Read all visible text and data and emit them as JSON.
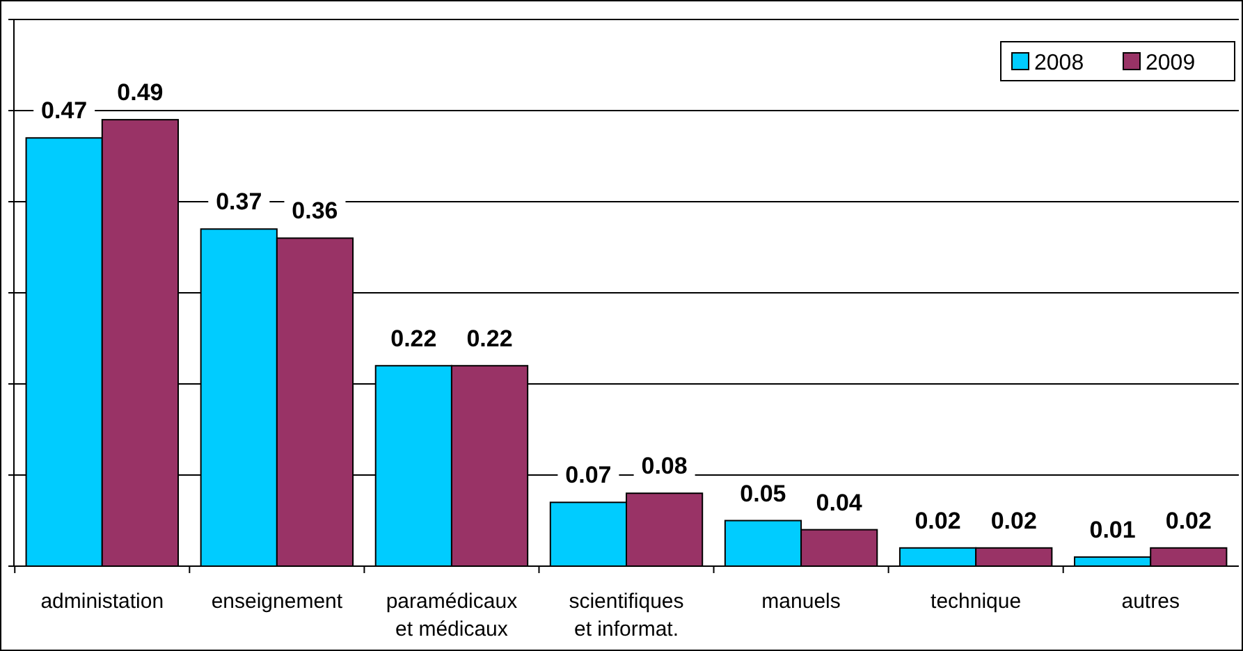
{
  "chart_data": {
    "type": "bar",
    "categories": [
      "administation",
      "enseignement",
      "paramédicaux et médicaux",
      "scientifiques et informat.",
      "manuels",
      "technique",
      "autres"
    ],
    "series": [
      {
        "name": "2008",
        "color": "#00ccff",
        "values": [
          0.47,
          0.37,
          0.22,
          0.07,
          0.05,
          0.02,
          0.01
        ]
      },
      {
        "name": "2009",
        "color": "#993366",
        "values": [
          0.49,
          0.36,
          0.22,
          0.08,
          0.04,
          0.02,
          0.02
        ]
      }
    ],
    "ylim": [
      0,
      0.6
    ],
    "yticks": [
      {
        "value": 0,
        "label": null
      },
      {
        "value": 0.1,
        "label": null
      },
      {
        "value": 0.2,
        "label": null
      },
      {
        "value": 0.3,
        "label": null
      },
      {
        "value": 0.4,
        "label": null
      },
      {
        "value": 0.5,
        "label": null
      },
      {
        "value": 0.6,
        "label": null
      }
    ],
    "grid": "y",
    "legend": "top right",
    "data_labels": true,
    "tick_labels": "x"
  }
}
